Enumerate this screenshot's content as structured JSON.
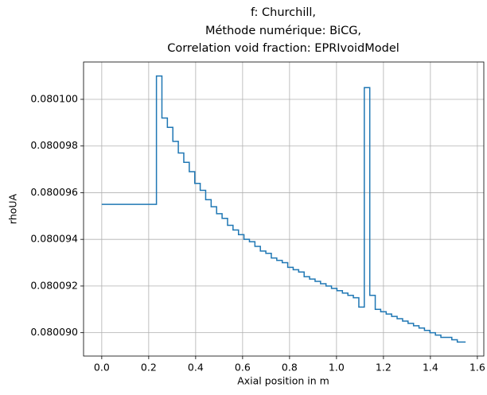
{
  "chart_data": {
    "type": "step",
    "step_where": "post",
    "title": [
      "f: Churchill,",
      "Méthode numérique: BiCG,",
      "Correlation void fraction: EPRIvoidModel"
    ],
    "x_label": "Axial position in m",
    "y_label": "rhoUA",
    "grid": true,
    "xlim": [
      -0.0775,
      1.6275
    ],
    "ylim": [
      0.080089,
      0.0801016
    ],
    "xticks": [
      {
        "value": 0,
        "label": "0.0"
      },
      0.2,
      0.4,
      0.6,
      0.8,
      {
        "value": 1,
        "label": "1.0"
      },
      1.2,
      1.4,
      1.6
    ],
    "yticks": [
      {
        "value": 0.08009,
        "label": "0.080090"
      },
      0.080092,
      0.080094,
      0.080096,
      0.080098,
      {
        "value": 0.0801,
        "label": "0.080100"
      }
    ],
    "series": [
      {
        "color": "#1f77b4",
        "x": [
          0,
          0.233,
          0.2563,
          0.2796,
          0.3029,
          0.3262,
          0.3495,
          0.3728,
          0.3961,
          0.4194,
          0.4427,
          0.466,
          0.4893,
          0.5126,
          0.5359,
          0.5592,
          0.5825,
          0.6058,
          0.6291,
          0.6524,
          0.6757,
          0.699,
          0.7223,
          0.7456,
          0.7689,
          0.7922,
          0.8155,
          0.8388,
          0.8621,
          0.8854,
          0.9087,
          0.932,
          0.9553,
          0.9786,
          1.0019,
          1.0252,
          1.0485,
          1.0718,
          1.0951,
          1.1184,
          1.1417,
          1.165,
          1.1883,
          1.2116,
          1.2349,
          1.2582,
          1.2815,
          1.3048,
          1.3281,
          1.3514,
          1.3747,
          1.398,
          1.4213,
          1.4446,
          1.4679,
          1.4912,
          1.5145,
          1.5378,
          1.55
        ],
        "values": [
          0.0800955,
          0.080101,
          0.0800992,
          0.0800988,
          0.0800982,
          0.0800977,
          0.0800973,
          0.0800969,
          0.0800964,
          0.0800961,
          0.0800957,
          0.0800954,
          0.0800951,
          0.0800949,
          0.0800946,
          0.0800944,
          0.0800942,
          0.080094,
          0.0800939,
          0.0800937,
          0.0800935,
          0.0800934,
          0.0800932,
          0.0800931,
          0.080093,
          0.0800928,
          0.0800927,
          0.0800926,
          0.0800924,
          0.0800923,
          0.0800922,
          0.0800921,
          0.080092,
          0.0800919,
          0.0800918,
          0.0800917,
          0.0800916,
          0.0800915,
          0.0800911,
          0.0801005,
          0.0800916,
          0.080091,
          0.0800909,
          0.0800908,
          0.0800907,
          0.0800906,
          0.0800905,
          0.0800904,
          0.0800903,
          0.0800902,
          0.0800901,
          0.08009,
          0.0800899,
          0.0800898,
          0.0800898,
          0.0800897,
          0.0800896,
          0.0800896,
          0.0800896
        ]
      }
    ]
  }
}
